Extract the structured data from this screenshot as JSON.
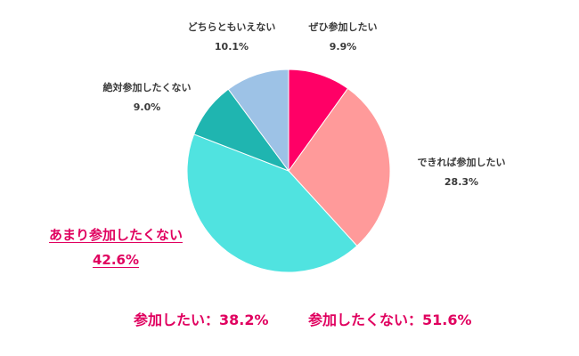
{
  "chart_data": {
    "type": "pie",
    "title": "",
    "start_angle_deg": 0,
    "direction": "clockwise",
    "slices": [
      {
        "label": "ぜひ参加したい",
        "value": 9.9,
        "pct_label": "9.9%",
        "color": "#ff0066"
      },
      {
        "label": "できれば参加したい",
        "value": 28.3,
        "pct_label": "28.3%",
        "color": "#ff9a9a"
      },
      {
        "label": "あまり参加したくない",
        "value": 42.6,
        "pct_label": "42.6%",
        "color": "#50e3e0",
        "highlighted": true
      },
      {
        "label": "絶対参加したくない",
        "value": 9.0,
        "pct_label": "9.0%",
        "color": "#1fb5b0"
      },
      {
        "label": "どちらともいえない",
        "value": 10.1,
        "pct_label": "10.1%",
        "color": "#9dc2e6"
      }
    ],
    "annotations": [
      {
        "text": "参加したい：38.2%"
      },
      {
        "text": "参加したくない：51.6%"
      }
    ]
  },
  "labels": {
    "zehi": {
      "name": "ぜひ参加したい",
      "pct": "9.9%"
    },
    "dekireba": {
      "name": "できれば参加したい",
      "pct": "28.3%"
    },
    "amari": {
      "name": "あまり参加したくない",
      "pct": "42.6%"
    },
    "zettai": {
      "name": "絶対参加したくない",
      "pct": "9.0%"
    },
    "dochira": {
      "name": "どちらともいえない",
      "pct": "10.1%"
    }
  },
  "summary": {
    "yes": "参加したい：38.2%",
    "no": "参加したくない：51.6%"
  },
  "accent_color": "#e0005f"
}
